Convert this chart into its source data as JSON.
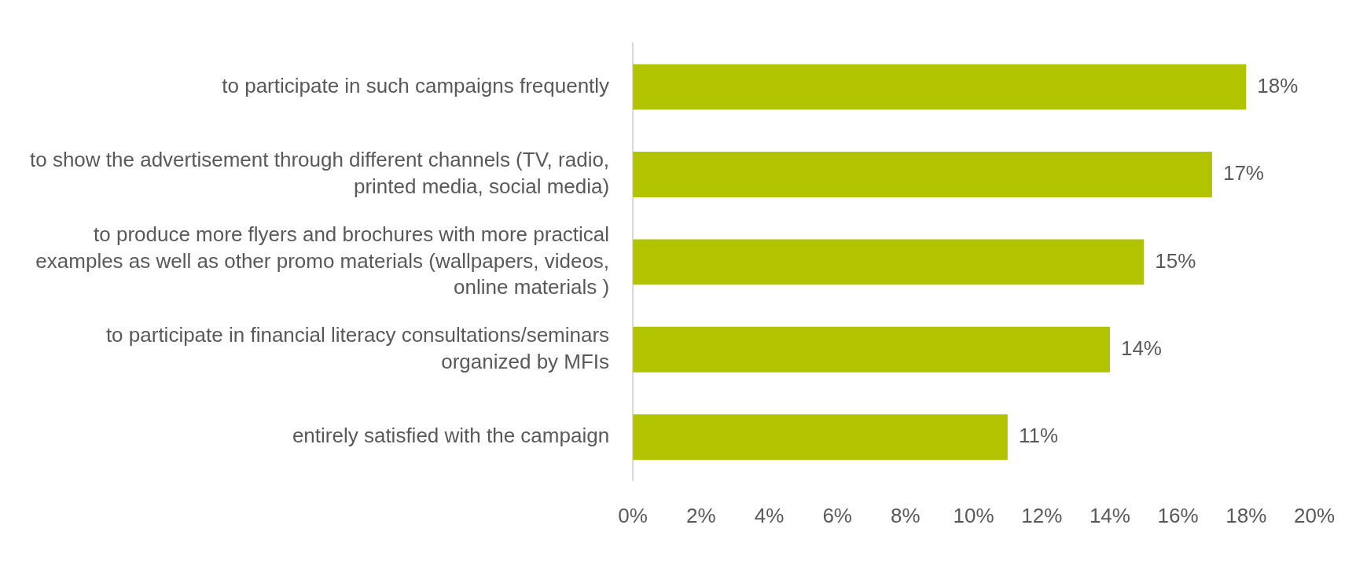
{
  "chart_data": {
    "type": "bar",
    "orientation": "horizontal",
    "categories": [
      "to participate in such campaigns frequently",
      "to show the advertisement through different channels (TV, radio, printed media, social media)",
      "to produce more flyers and brochures with more practical examples as well as other promo materials (wallpapers, videos, online materials )",
      "to participate in financial literacy consultations/seminars organized by MFIs",
      "entirely satisfied with the campaign"
    ],
    "values": [
      18,
      17,
      15,
      14,
      11
    ],
    "value_labels": [
      "18%",
      "17%",
      "15%",
      "14%",
      "11%"
    ],
    "color": "#b2c300",
    "xlim": [
      0,
      20
    ],
    "xticks": [
      {
        "value": 0,
        "label": "0%"
      },
      {
        "value": 2,
        "label": "2%"
      },
      {
        "value": 4,
        "label": "4%"
      },
      {
        "value": 6,
        "label": "6%"
      },
      {
        "value": 8,
        "label": "8%"
      },
      {
        "value": 10,
        "label": "10%"
      },
      {
        "value": 12,
        "label": "12%"
      },
      {
        "value": 14,
        "label": "14%"
      },
      {
        "value": 16,
        "label": "16%"
      },
      {
        "value": 18,
        "label": "18%"
      },
      {
        "value": 20,
        "label": "20%"
      }
    ],
    "grid": false,
    "legend": false
  }
}
